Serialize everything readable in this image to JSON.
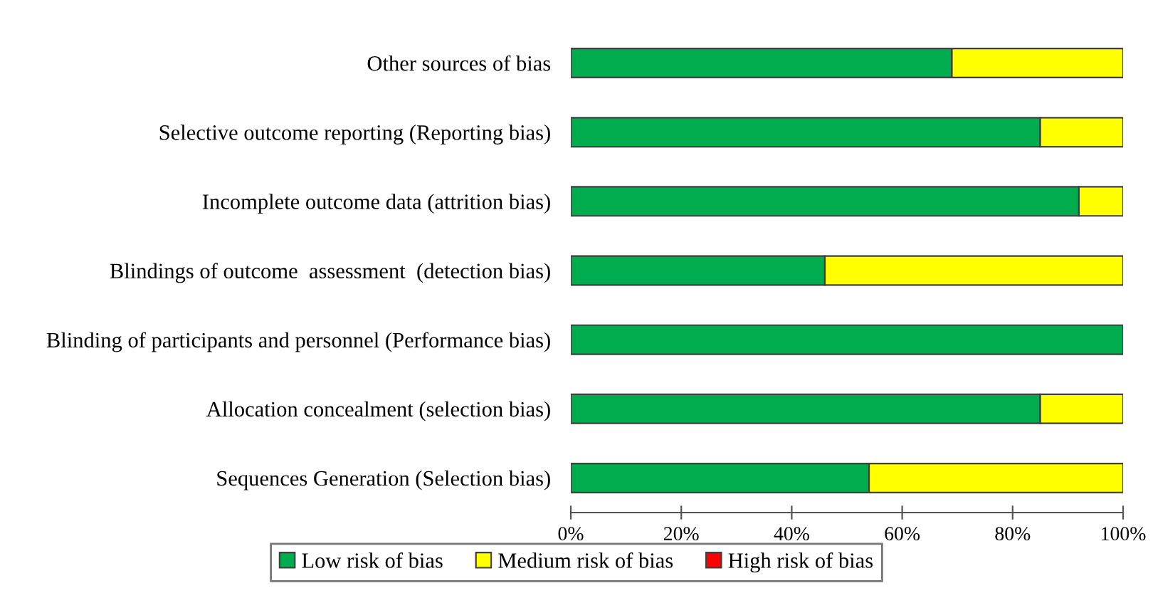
{
  "chart_data": {
    "type": "bar",
    "orientation": "horizontal",
    "stacked": true,
    "categories": [
      "Other sources of bias",
      "Selective outcome reporting (Reporting bias)",
      "Incomplete outcome data (attrition bias)",
      "Blindings of outcome  assessment  (detection bias)",
      "Blinding of participants and personnel (Performance bias)",
      "Allocation concealment (selection bias)",
      "Sequences Generation (Selection bias)"
    ],
    "series": [
      {
        "name": "Low risk of bias",
        "color": "#00ad4e",
        "values": [
          69,
          85,
          92,
          46,
          100,
          85,
          54
        ]
      },
      {
        "name": "Medium risk of bias",
        "color": "#ffff00",
        "values": [
          31,
          15,
          8,
          54,
          0,
          15,
          46
        ]
      },
      {
        "name": "High risk of bias",
        "color": "#ff0000",
        "values": [
          0,
          0,
          0,
          0,
          0,
          0,
          0
        ]
      }
    ],
    "xlim": [
      0,
      100
    ],
    "xticks": [
      {
        "value": 0,
        "label": "0%"
      },
      {
        "value": 20,
        "label": "20%"
      },
      {
        "value": 40,
        "label": "40%"
      },
      {
        "value": 60,
        "label": "60%"
      },
      {
        "value": 80,
        "label": "80%"
      },
      {
        "value": 100,
        "label": "100%"
      }
    ],
    "grid": false,
    "legend": "bottom"
  }
}
